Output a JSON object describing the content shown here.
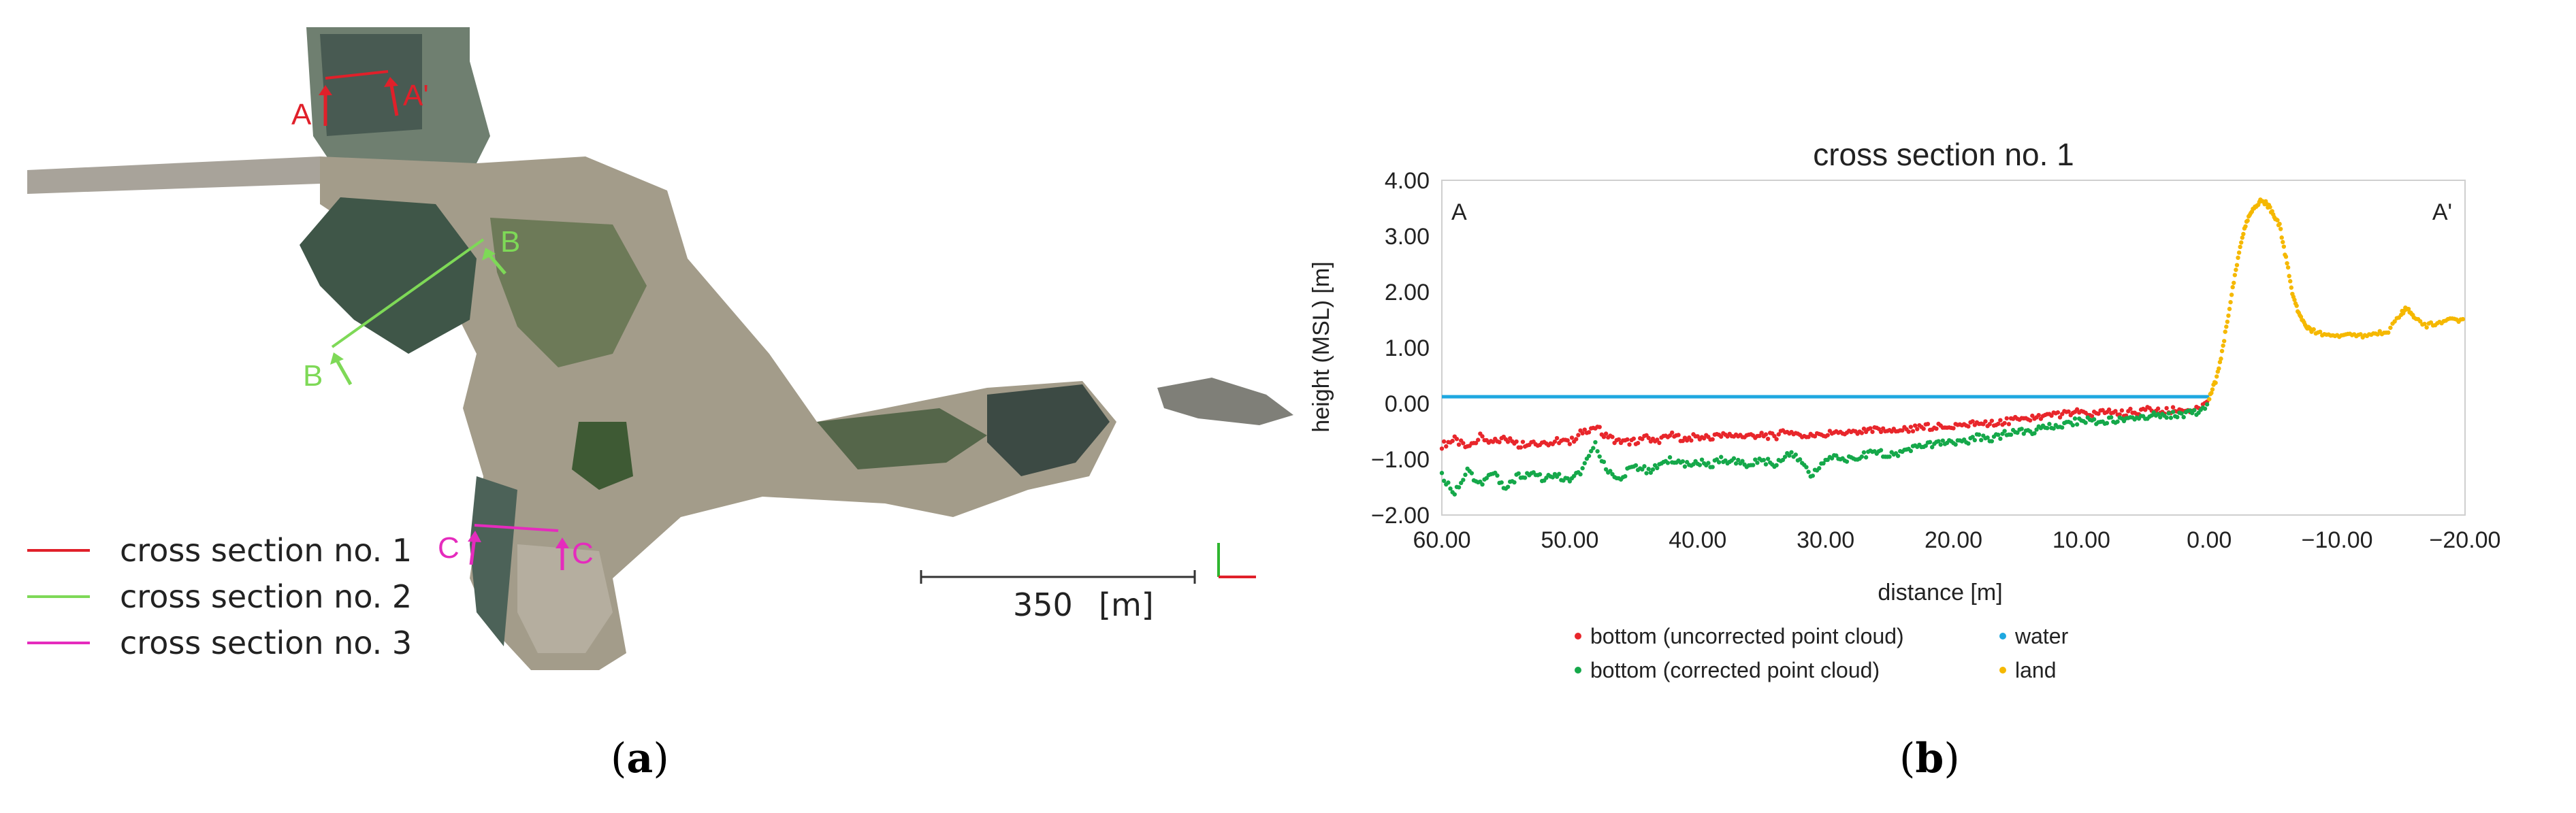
{
  "panels": {
    "a_caption": "a",
    "b_caption": "b"
  },
  "map": {
    "section_markers": [
      {
        "label": "A",
        "color": "#e0202a"
      },
      {
        "label": "A'",
        "color": "#e0202a"
      },
      {
        "label": "B",
        "color": "#7ed957"
      },
      {
        "label": "B",
        "color": "#7ed957"
      },
      {
        "label": "C",
        "color": "#e52bbd"
      },
      {
        "label": "C",
        "color": "#e52bbd"
      }
    ],
    "legend": [
      {
        "label": "cross section no. 1",
        "color": "#e0202a"
      },
      {
        "label": "cross section no. 2",
        "color": "#7ed957"
      },
      {
        "label": "cross section no. 3",
        "color": "#e52bbd"
      }
    ],
    "scale_value": "350",
    "scale_unit": "[m]"
  },
  "chart_data": {
    "type": "scatter",
    "title": "cross section no. 1",
    "xlabel": "distance [m]",
    "ylabel": "height (MSL) [m]",
    "xlim": [
      60,
      -20
    ],
    "ylim": [
      -2,
      4
    ],
    "x_reversed": true,
    "x_ticks": [
      60,
      50,
      40,
      30,
      20,
      10,
      0,
      -10,
      -20
    ],
    "x_tick_labels": [
      "60.00",
      "50.00",
      "40.00",
      "30.00",
      "20.00",
      "10.00",
      "0.00",
      "−10.00",
      "−20.00"
    ],
    "y_ticks": [
      4,
      3,
      2,
      1,
      0,
      -1,
      -2
    ],
    "y_tick_labels": [
      "4.00",
      "3.00",
      "2.00",
      "1.00",
      "0.00",
      "−1.00",
      "−2.00"
    ],
    "grid": false,
    "legend_position": "bottom",
    "corner_labels": {
      "left": "A",
      "right": "A'"
    },
    "series": [
      {
        "name": "bottom (uncorrected point cloud)",
        "color": "#e8262b",
        "x": [
          60,
          59,
          58,
          57,
          56,
          55,
          54,
          53,
          52,
          51,
          50,
          49,
          48,
          47,
          46,
          45,
          44,
          43,
          42,
          41,
          40,
          39,
          38,
          37,
          36,
          35,
          34,
          33,
          32,
          31,
          30,
          29,
          28,
          27,
          26,
          25,
          24,
          23,
          22,
          21,
          20,
          19,
          18,
          17,
          16,
          15,
          14,
          13,
          12,
          11,
          10,
          9,
          8,
          7,
          6,
          5,
          4,
          3,
          2,
          1,
          0
        ],
        "y": [
          -0.75,
          -0.65,
          -0.8,
          -0.6,
          -0.7,
          -0.62,
          -0.75,
          -0.68,
          -0.72,
          -0.66,
          -0.7,
          -0.5,
          -0.42,
          -0.6,
          -0.7,
          -0.68,
          -0.62,
          -0.65,
          -0.58,
          -0.63,
          -0.6,
          -0.62,
          -0.55,
          -0.6,
          -0.58,
          -0.56,
          -0.6,
          -0.5,
          -0.55,
          -0.6,
          -0.55,
          -0.52,
          -0.55,
          -0.5,
          -0.48,
          -0.5,
          -0.47,
          -0.45,
          -0.42,
          -0.4,
          -0.4,
          -0.38,
          -0.35,
          -0.35,
          -0.32,
          -0.3,
          -0.28,
          -0.25,
          -0.2,
          -0.18,
          -0.15,
          -0.2,
          -0.15,
          -0.18,
          -0.15,
          -0.12,
          -0.15,
          -0.12,
          -0.12,
          -0.1,
          0.0
        ]
      },
      {
        "name": "bottom (corrected point cloud)",
        "color": "#15a84a",
        "x": [
          60,
          59,
          58,
          57,
          56,
          55,
          54,
          53,
          52,
          51,
          50,
          49,
          48,
          47,
          46,
          45,
          44,
          43,
          42,
          41,
          40,
          39,
          38,
          37,
          36,
          35,
          34,
          33,
          32,
          31,
          30,
          29,
          28,
          27,
          26,
          25,
          24,
          23,
          22,
          21,
          20,
          19,
          18,
          17,
          16,
          15,
          14,
          13,
          12,
          11,
          10,
          9,
          8,
          7,
          6,
          5,
          4,
          3,
          2,
          1,
          0
        ],
        "y": [
          -1.3,
          -1.6,
          -1.2,
          -1.45,
          -1.25,
          -1.5,
          -1.3,
          -1.25,
          -1.35,
          -1.3,
          -1.4,
          -1.2,
          -0.75,
          -1.2,
          -1.35,
          -1.1,
          -1.2,
          -1.15,
          -1.0,
          -1.1,
          -1.05,
          -1.1,
          -1.0,
          -1.05,
          -1.1,
          -1.0,
          -1.1,
          -0.9,
          -1.0,
          -1.3,
          -1.0,
          -0.95,
          -1.0,
          -0.92,
          -0.85,
          -0.95,
          -0.85,
          -0.8,
          -0.75,
          -0.72,
          -0.7,
          -0.68,
          -0.6,
          -0.62,
          -0.55,
          -0.52,
          -0.5,
          -0.45,
          -0.4,
          -0.35,
          -0.3,
          -0.32,
          -0.3,
          -0.28,
          -0.25,
          -0.22,
          -0.22,
          -0.2,
          -0.2,
          -0.15,
          -0.05
        ]
      },
      {
        "name": "water",
        "color": "#1fa8e0",
        "x": [
          60,
          0
        ],
        "y": [
          0.12,
          0.12
        ]
      },
      {
        "name": "land",
        "color": "#f5b800",
        "x": [
          0,
          -0.5,
          -1,
          -1.5,
          -2,
          -2.5,
          -3,
          -3.5,
          -4,
          -4.5,
          -5,
          -5.5,
          -6,
          -6.5,
          -7,
          -7.5,
          -8,
          -9,
          -10,
          -11,
          -12,
          -13,
          -14,
          -15,
          -15.5,
          -16,
          -17,
          -18,
          -19,
          -20
        ],
        "y": [
          0.1,
          0.4,
          0.9,
          1.6,
          2.3,
          2.9,
          3.3,
          3.5,
          3.62,
          3.58,
          3.4,
          3.2,
          2.6,
          2.0,
          1.6,
          1.4,
          1.3,
          1.25,
          1.2,
          1.22,
          1.2,
          1.25,
          1.3,
          1.6,
          1.72,
          1.55,
          1.4,
          1.45,
          1.5,
          1.5
        ]
      }
    ]
  }
}
